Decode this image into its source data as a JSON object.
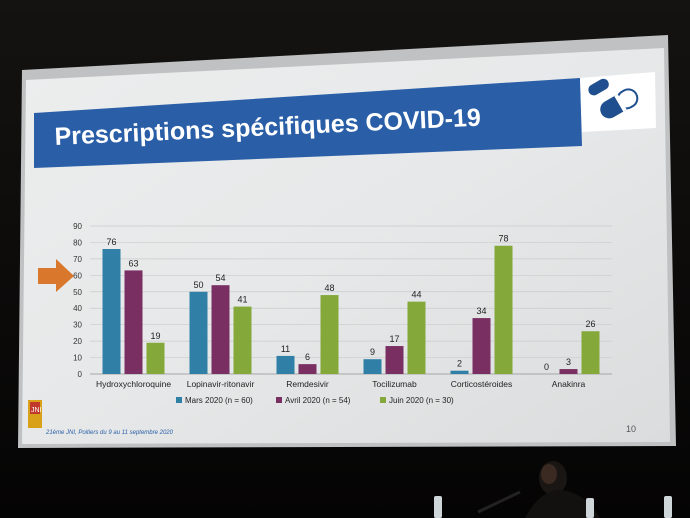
{
  "slide": {
    "title": "Prescriptions spécifiques COVID-19",
    "footer_event": "21ème JNI, Poitiers du 9 au 11 septembre 2020",
    "footer_logo_text": "JNI",
    "page_number": "10",
    "pill_icon": "capsule-icon"
  },
  "colors": {
    "header_band": "#2a5fa8",
    "mars": "#2f7fa6",
    "avril": "#7a2f63",
    "juin": "#84a83a",
    "arrow": "#d9772c",
    "screen": "#e7e9ea"
  },
  "chart_data": {
    "type": "bar",
    "categories": [
      "Hydroxychloroquine",
      "Lopinavir-ritonavir",
      "Remdesivir",
      "Tocilizumab",
      "Corticostéroides",
      "Anakinra"
    ],
    "series": [
      {
        "name": "Mars 2020 (n = 60)",
        "values": [
          76,
          50,
          11,
          9,
          2,
          0
        ]
      },
      {
        "name": "Avril 2020 (n = 54)",
        "values": [
          63,
          54,
          6,
          17,
          34,
          3
        ]
      },
      {
        "name": "Juin 2020 (n = 30)",
        "values": [
          19,
          41,
          48,
          44,
          78,
          26
        ]
      }
    ],
    "yticks": [
      "0",
      "10",
      "20",
      "30",
      "40",
      "50",
      "60",
      "70",
      "80",
      "90"
    ],
    "ylim": [
      0,
      90
    ],
    "grid": true,
    "legend": "bottom"
  }
}
